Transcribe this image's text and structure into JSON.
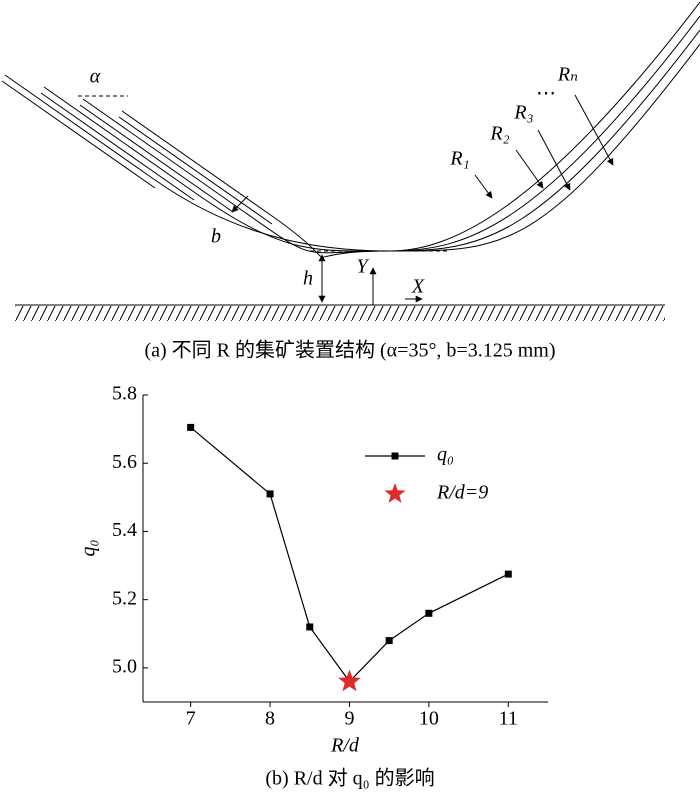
{
  "diagram": {
    "labels": {
      "alpha": "α",
      "b": "b",
      "h": "h",
      "Y": "Y",
      "X": "X",
      "R1": "R₁",
      "R2": "R₂",
      "R3": "R₃",
      "Rn": "Rₙ",
      "ellipsis": "⋯"
    },
    "caption": "(a) 不同 R 的集矿装置结构 (α=35°, b=3.125 mm)"
  },
  "chart_data": {
    "type": "line",
    "x": [
      7,
      8,
      8.5,
      9,
      9.5,
      10,
      11
    ],
    "series": [
      {
        "name": "q₀",
        "color": "#000000",
        "values": [
          5.705,
          5.51,
          5.12,
          4.96,
          5.08,
          5.16,
          5.275
        ]
      },
      {
        "name": "R/d=9",
        "color": "#e02a2a",
        "x": [
          9
        ],
        "values": [
          4.96
        ],
        "marker": "star"
      }
    ],
    "xlabel": "R/d",
    "ylabel": "q₀",
    "xlim": [
      6.4,
      11.5
    ],
    "xticks": [
      7,
      8,
      9,
      10,
      11
    ],
    "ylim": [
      4.9,
      5.8
    ],
    "yticks": [
      {
        "value": 5,
        "label": "5.0"
      },
      5.2,
      5.4,
      5.6,
      5.8
    ],
    "legend": "upper right",
    "caption": "(b) R/d 对 q₀ 的影响"
  }
}
